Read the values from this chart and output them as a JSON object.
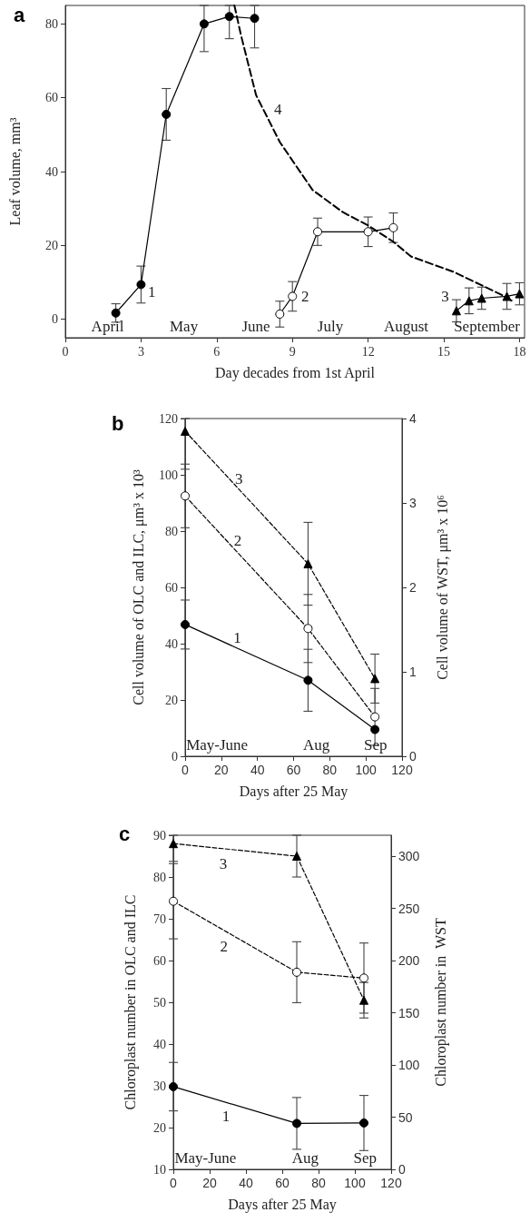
{
  "chart_data": [
    {
      "type": "line",
      "title": "a",
      "xlabel": "Day decades from 1st April",
      "ylabel": "Leaf volume, mm³",
      "xlim": [
        0,
        18.2
      ],
      "xticks": [
        0,
        3,
        6,
        9,
        12,
        15,
        18
      ],
      "ylim": [
        -5,
        85
      ],
      "yticks": [
        0,
        20,
        40,
        60,
        80
      ],
      "series": [
        {
          "name": "1",
          "color": "#000000",
          "marker": "circle",
          "line_style": "solid",
          "x": [
            2,
            3,
            4,
            5.5,
            6.5,
            7.5
          ],
          "values": [
            1.7,
            9.4,
            55.5,
            80,
            82,
            81.5
          ],
          "errors": [
            2.5,
            5,
            7,
            [
              72.5,
              85
            ],
            [
              76,
              85
            ],
            [
              73.5,
              85
            ]
          ]
        },
        {
          "name": "2",
          "color": "#ffffff",
          "marker": "circle",
          "line_style": "solid",
          "x": [
            8.5,
            9,
            10,
            12,
            13
          ],
          "values": [
            1.4,
            6.2,
            23.7,
            23.7,
            24.8
          ],
          "errors": [
            3.5,
            4,
            3.7,
            4,
            4
          ]
        },
        {
          "name": "3",
          "color": "#000000",
          "marker": "triangle",
          "line_style": "solid",
          "x": [
            15.5,
            16,
            16.5,
            17.5,
            18
          ],
          "values": [
            2.3,
            5,
            5.7,
            6.2,
            6.9
          ],
          "errors": [
            3,
            3.5,
            3,
            3.5,
            3
          ]
        },
        {
          "name": "4",
          "color": "#000000",
          "marker": "none",
          "line_style": "dashed",
          "x": [
            6.7,
            6.96,
            7.56,
            8.5,
            9.8,
            11,
            12,
            13,
            13.7,
            15.4,
            16.1,
            17.3,
            17.8
          ],
          "values": [
            85,
            77,
            60.7,
            48,
            35,
            29,
            25.4,
            21,
            17,
            12.8,
            10.5,
            6.6,
            4.6
          ]
        }
      ],
      "annotations": [
        "April",
        "May",
        "June",
        "July",
        "August",
        "September"
      ]
    },
    {
      "type": "line",
      "title": "b",
      "xlabel": "Days after 25 May",
      "ylabel": "Cell volume of OLC and ILC, μm³ x 10³",
      "y2label": "Cell volume of WST, μm³ x 10⁶",
      "xlim": [
        0,
        120
      ],
      "xticks": [
        0,
        20,
        40,
        60,
        80,
        100,
        120
      ],
      "ylim": [
        0,
        120
      ],
      "yticks": [
        0,
        20,
        40,
        60,
        80,
        100,
        120
      ],
      "y2lim": [
        0,
        4
      ],
      "y2ticks": [
        0,
        1,
        2,
        3,
        4
      ],
      "series": [
        {
          "name": "1",
          "color": "#000000",
          "marker": "circle",
          "line_style": "solid",
          "x": [
            0,
            68,
            105
          ],
          "values": [
            46.8,
            27,
            9.5
          ],
          "errors": [
            8.7,
            11,
            null
          ]
        },
        {
          "name": "2",
          "color": "#ffffff",
          "marker": "circle",
          "line_style": "dashed",
          "x": [
            0,
            68,
            105
          ],
          "values": [
            92.5,
            45.4,
            14
          ],
          "errors": [
            11.3,
            12.1,
            10.1
          ]
        },
        {
          "name": "3",
          "color": "#000000",
          "marker": "triangle",
          "line_style": "dashed",
          "axis": "y2",
          "x": [
            0,
            68,
            105
          ],
          "values": [
            3.85,
            2.28,
            0.92
          ],
          "errors": [
            [
              3.4,
              4
            ],
            0.49,
            0.29
          ]
        }
      ],
      "annotations": [
        "May-June",
        "Aug",
        "Sep"
      ]
    },
    {
      "type": "line",
      "title": "c",
      "xlabel": "Days after 25 May",
      "ylabel": "Chloroplast number in OLC and ILC",
      "y2label": "Chloroplast number in  WST",
      "xlim": [
        0,
        120
      ],
      "xticks": [
        0,
        20,
        40,
        60,
        80,
        100,
        120
      ],
      "ylim": [
        10,
        90
      ],
      "yticks": [
        10,
        20,
        30,
        40,
        50,
        60,
        70,
        80,
        90
      ],
      "y2lim": [
        0,
        320
      ],
      "y2ticks": [
        0,
        50,
        100,
        150,
        200,
        250,
        300
      ],
      "series": [
        {
          "name": "1",
          "color": "#000000",
          "marker": "circle",
          "line_style": "solid",
          "x": [
            0,
            68,
            105
          ],
          "values": [
            29.8,
            21,
            21.1
          ],
          "errors": [
            5.8,
            6.2,
            6.6
          ]
        },
        {
          "name": "2",
          "color": "#ffffff",
          "marker": "circle",
          "line_style": "dashed",
          "x": [
            0,
            68,
            105
          ],
          "values": [
            74.2,
            57.2,
            55.8
          ],
          "errors": [
            9,
            7.3,
            8.4
          ]
        },
        {
          "name": "3",
          "color": "#000000",
          "marker": "triangle",
          "line_style": "dashed",
          "axis": "y2",
          "x": [
            0,
            68,
            105
          ],
          "values": [
            312,
            300,
            162
          ],
          "errors": [
            [
              295,
              320
            ],
            [
              280,
              320
            ],
            17
          ]
        }
      ],
      "annotations": [
        "May-June",
        "Aug",
        "Sep"
      ]
    }
  ]
}
